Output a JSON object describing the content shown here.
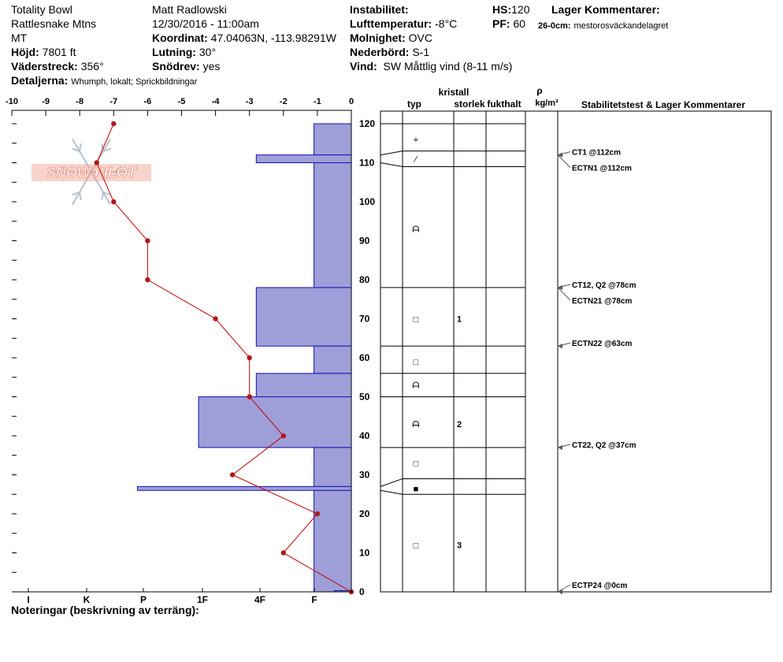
{
  "header": {
    "location": "Totality Bowl",
    "range": "Rattlesnake Mtns",
    "state": "MT",
    "elevation_label": "Höjd:",
    "elevation_value": "7801 ft",
    "aspect_label": "Väderstreck:",
    "aspect_value": "356°",
    "details_label": "Detaljerna:",
    "details_value": "Whumph, lokalt;  Sprickbildningar",
    "observer": "Matt Radlowski",
    "datetime": "12/30/2016 - 11:00am",
    "coord_label": "Koordinat:",
    "coord_value": "47.04063N, -113.98291W",
    "slope_label": "Lutning:",
    "slope_value": "30°",
    "drift_label": "Snödrev:",
    "drift_value": "yes",
    "instability_label": "Instabilitet:",
    "airtemp_label": "Lufttemperatur:",
    "airtemp_value": "-8°C",
    "sky_label": "Molnighet:",
    "sky_value": "OVC",
    "precip_label": "Nederbörd:",
    "precip_value": "S-1",
    "wind_label": "Vind:",
    "wind_value": "SW  Måttlig vind (8-11 m/s)",
    "hs_label": "HS:",
    "hs_value": "120",
    "pf_label": "PF:",
    "pf_value": "60",
    "layer_comments_label": "Lager Kommentarer:",
    "layer_comment_depth": "26-0cm:",
    "layer_comment_text": "mestorosväckandelagret",
    "notes_label": "Noteringar (beskrivning av terräng):"
  },
  "logo_text": "SNOW PILOT",
  "columns": {
    "crystal": "kristall",
    "type": "typ",
    "size": "storlek",
    "moisture": "fukthalt",
    "rho": "ρ",
    "density_unit": "kg/m³",
    "stability": "Stabilitetstest & Lager Kommentarer"
  },
  "chart_data": {
    "type": "snow-profile",
    "temp_axis": {
      "range": [
        -10,
        0
      ],
      "ticks": [
        "-10",
        "-9",
        "-8",
        "-7",
        "-6",
        "-5",
        "-4",
        "-3",
        "-2",
        "-1",
        "0"
      ]
    },
    "height_axis": {
      "range": [
        0,
        120
      ],
      "ticks": [
        "0",
        "10",
        "20",
        "30",
        "40",
        "50",
        "60",
        "70",
        "80",
        "90",
        "100",
        "110",
        "120"
      ]
    },
    "hardness_axis": {
      "labels": [
        "I",
        "K",
        "P",
        "1F",
        "4F",
        "F"
      ]
    },
    "temperature_profile": [
      {
        "h": 120,
        "t": -7
      },
      {
        "h": 110,
        "t": -7.5
      },
      {
        "h": 100,
        "t": -7
      },
      {
        "h": 90,
        "t": -6
      },
      {
        "h": 80,
        "t": -6
      },
      {
        "h": 70,
        "t": -4
      },
      {
        "h": 60,
        "t": -3
      },
      {
        "h": 50,
        "t": -3
      },
      {
        "h": 40,
        "t": -2
      },
      {
        "h": 30,
        "t": -3.5
      },
      {
        "h": 20,
        "t": -1
      },
      {
        "h": 10,
        "t": -2
      },
      {
        "h": 0,
        "t": 0
      }
    ],
    "hardness_profile": [
      {
        "bottom": 112,
        "top": 120,
        "hardness_in_temp_units": -1.1
      },
      {
        "bottom": 110,
        "top": 112,
        "hardness_in_temp_units": -2.8
      },
      {
        "bottom": 78,
        "top": 110,
        "hardness_in_temp_units": -1.1
      },
      {
        "bottom": 63,
        "top": 78,
        "hardness_in_temp_units": -2.8
      },
      {
        "bottom": 56,
        "top": 63,
        "hardness_in_temp_units": -1.1
      },
      {
        "bottom": 50,
        "top": 56,
        "hardness_in_temp_units": -2.8
      },
      {
        "bottom": 37,
        "top": 50,
        "hardness_in_temp_units": -4.5
      },
      {
        "bottom": 27,
        "top": 37,
        "hardness_in_temp_units": -1.1
      },
      {
        "bottom": 26,
        "top": 27,
        "hardness_in_temp_units": -6.3
      },
      {
        "bottom": 0,
        "top": 26,
        "hardness_in_temp_units": -1.1
      },
      {
        "bottom": 0,
        "top": 0.3,
        "hardness_in_temp_units": -0.5
      }
    ],
    "layer_boundaries": [
      0,
      25,
      29,
      37,
      50,
      56,
      63,
      78,
      109,
      113,
      120
    ],
    "grain_symbols": [
      {
        "h": 116,
        "symbol": "+"
      },
      {
        "h": 111,
        "symbol": "⁄"
      },
      {
        "h": 93,
        "symbol": "ᗩ"
      },
      {
        "h": 70,
        "symbol": "□",
        "size": "1"
      },
      {
        "h": 59,
        "symbol": "□"
      },
      {
        "h": 53,
        "symbol": "ᗩ"
      },
      {
        "h": 43,
        "symbol": "ᗩ",
        "size": "2"
      },
      {
        "h": 33,
        "symbol": "□"
      },
      {
        "h": 26.5,
        "symbol": "■"
      },
      {
        "h": 12,
        "symbol": "□",
        "size": "3"
      }
    ],
    "stability_tests": [
      {
        "h": 112,
        "label": "CT1 @112cm"
      },
      {
        "h": 112,
        "label": "ECTN1 @112cm"
      },
      {
        "h": 78,
        "label": "CT12, Q2 @78cm"
      },
      {
        "h": 78,
        "label": "ECTN21 @78cm"
      },
      {
        "h": 63,
        "label": "ECTN22 @63cm"
      },
      {
        "h": 37,
        "label": "CT22, Q2 @37cm"
      },
      {
        "h": 0,
        "label": "ECTP24 @0cm"
      }
    ],
    "colors": {
      "hardness_fill": "#9e9ed8",
      "hardness_stroke": "#1414b4",
      "temp_line": "#c00000",
      "temp_point": "#b01818",
      "logo": "#f0a090"
    }
  }
}
